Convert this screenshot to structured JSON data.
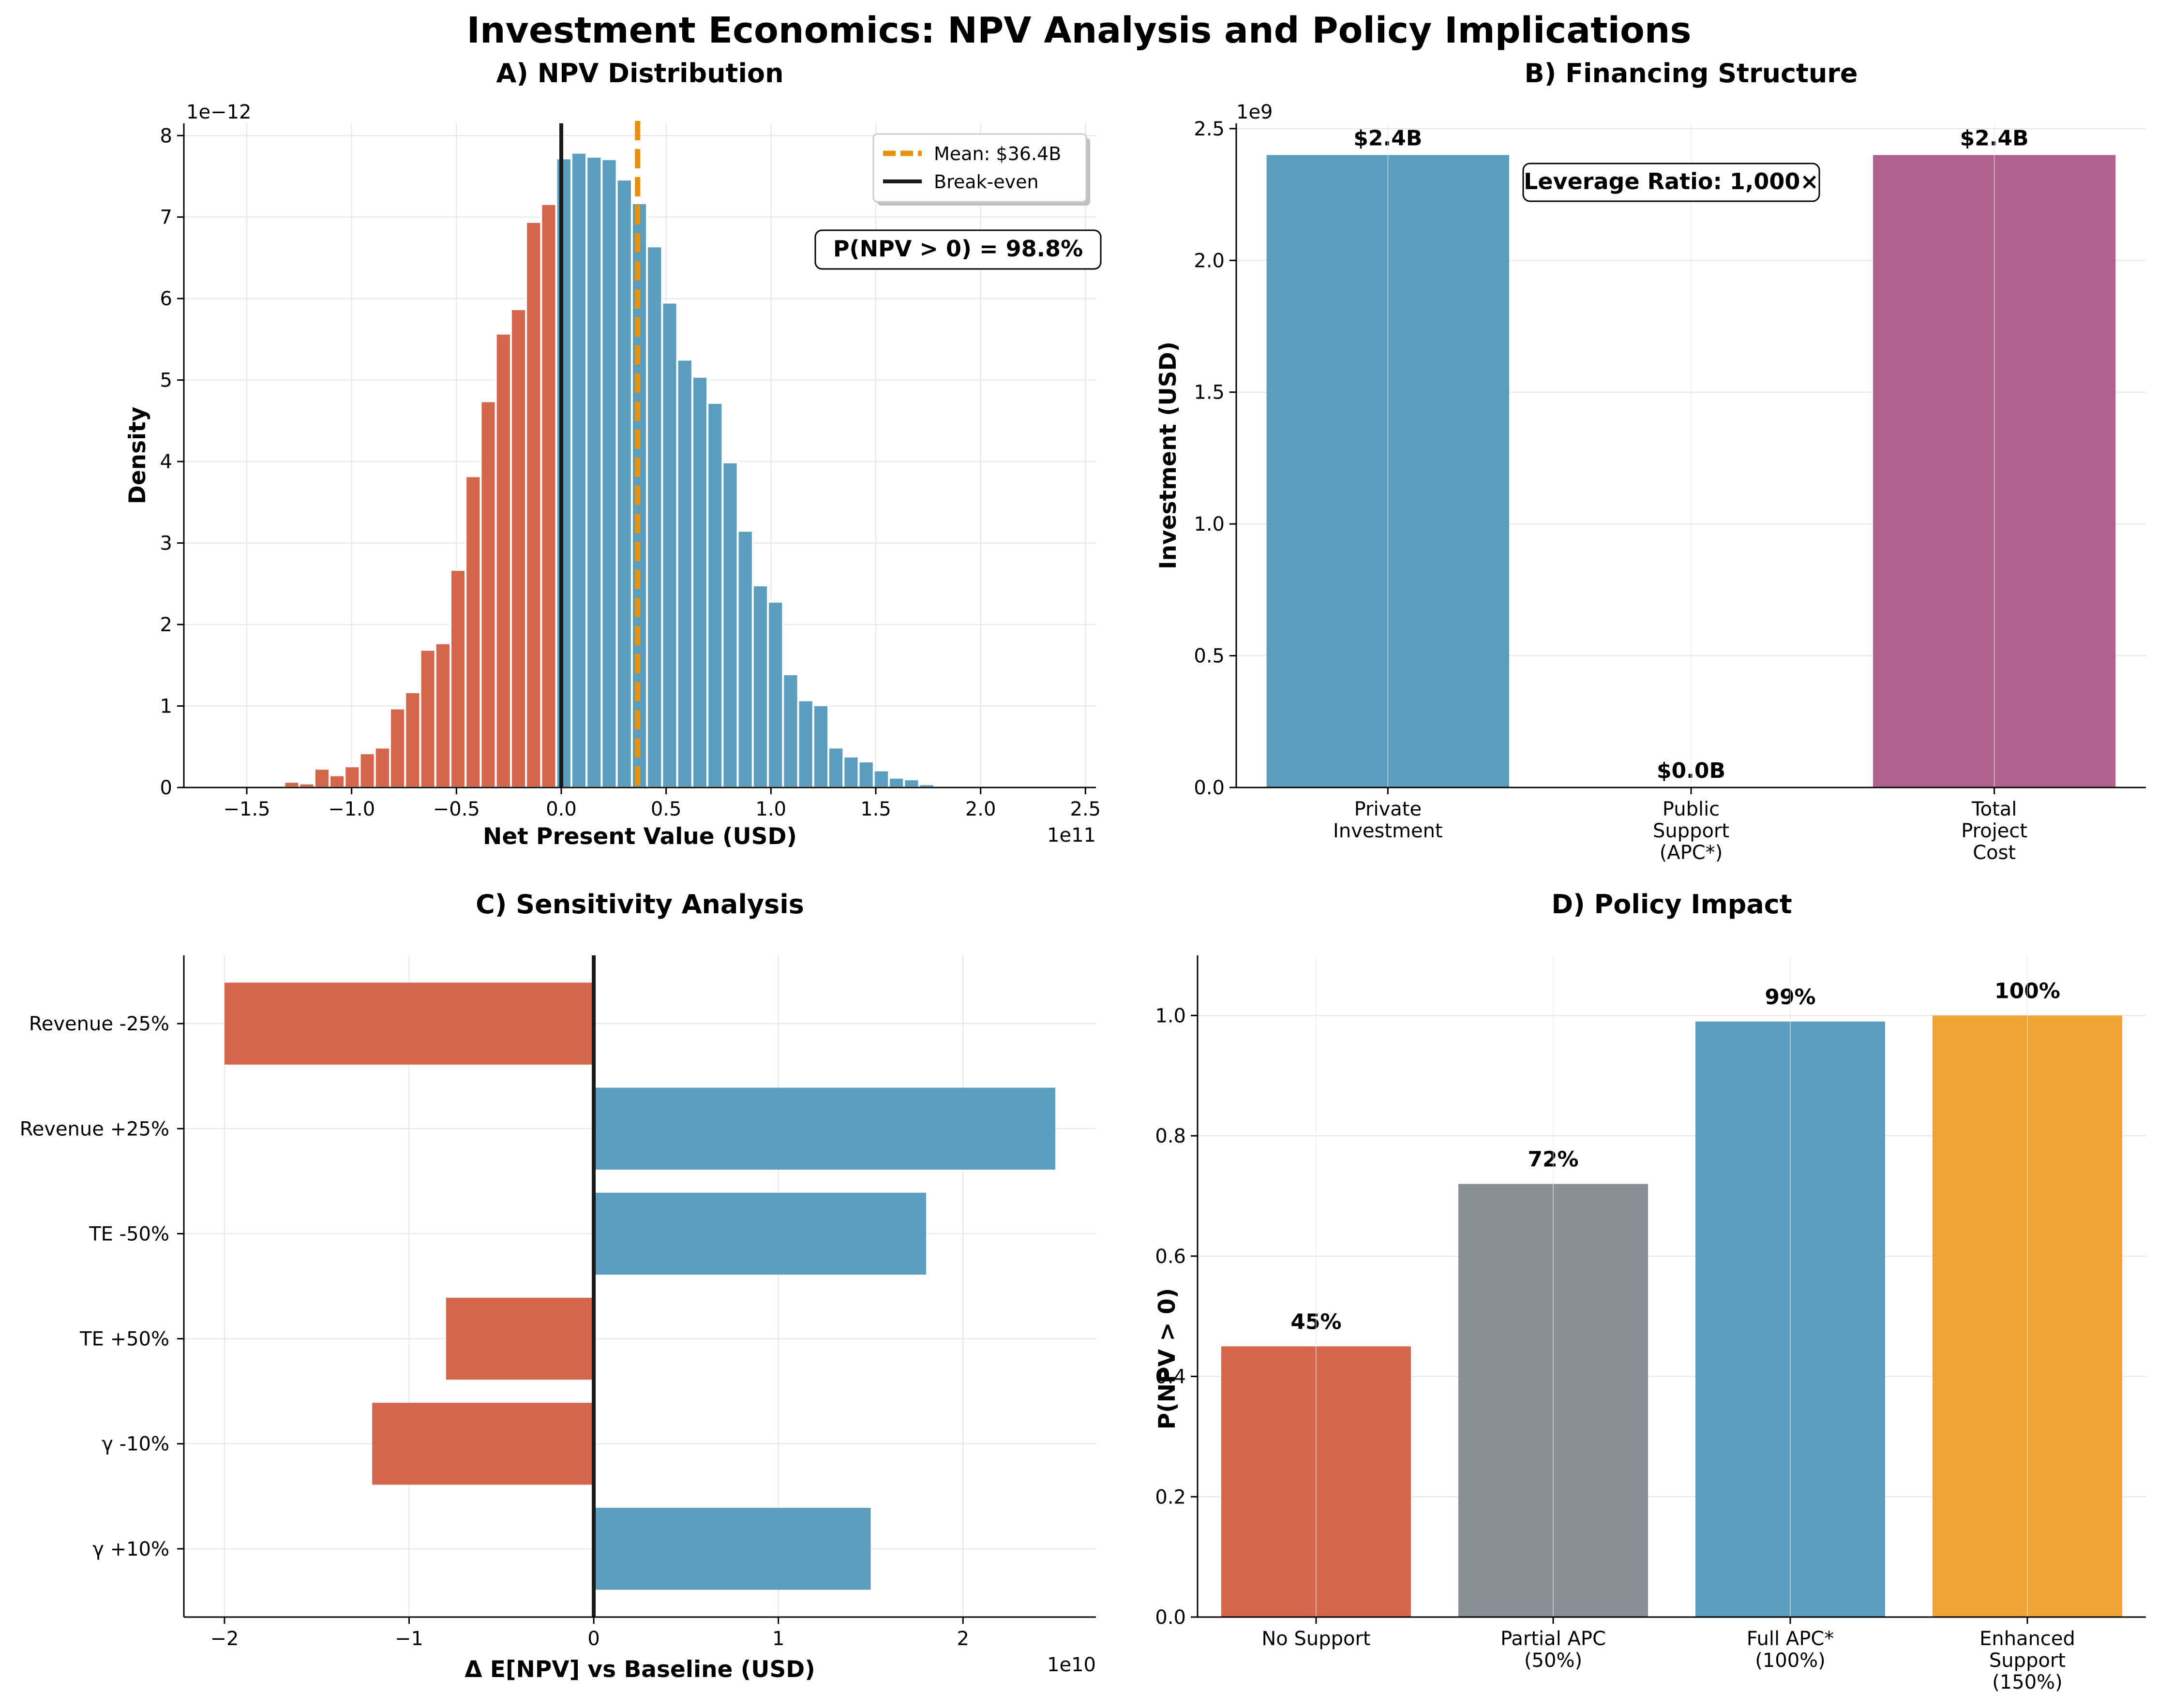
{
  "figure_title": "Investment Economics: NPV Analysis and Policy Implications",
  "colors": {
    "red": "#D5664D",
    "blue": "#5A9DBC",
    "purple": "#B0628C",
    "gray": "#898F96",
    "orange": "#F0A434",
    "mean_line": "#E8900F",
    "grid": "#E6E6E6"
  },
  "chart_data": [
    {
      "id": "A",
      "type": "bar",
      "subtype": "histogram",
      "title": "A) NPV Distribution",
      "xlabel": "Net Present Value (USD)",
      "ylabel": "Density",
      "x_multiplier": "1e11",
      "y_multiplier": "1e−12",
      "xlim": [
        -1.8,
        2.55
      ],
      "ylim": [
        0,
        8.15
      ],
      "xticks": [
        -1.5,
        -1.0,
        -0.5,
        0.0,
        0.5,
        1.0,
        1.5,
        2.0,
        2.5
      ],
      "xtick_labels": [
        "−1.5",
        "−1.0",
        "−0.5",
        "0.0",
        "0.5",
        "1.0",
        "1.5",
        "2.0",
        "2.5"
      ],
      "yticks": [
        0,
        1,
        2,
        3,
        4,
        5,
        6,
        7,
        8
      ],
      "ytick_labels": [
        "0",
        "1",
        "2",
        "3",
        "4",
        "5",
        "6",
        "7",
        "8"
      ],
      "bin_start": -1.61,
      "bin_width": 0.0721,
      "densities": [
        0,
        0,
        0,
        0,
        0.07,
        0.05,
        0.23,
        0.15,
        0.26,
        0.42,
        0.49,
        0.97,
        1.17,
        1.69,
        1.77,
        2.67,
        3.82,
        4.74,
        5.57,
        5.87,
        6.94,
        7.16,
        7.72,
        7.79,
        7.74,
        7.71,
        7.46,
        7.17,
        6.64,
        5.95,
        5.25,
        5.04,
        4.72,
        3.99,
        3.15,
        2.48,
        2.28,
        1.39,
        1.07,
        1.01,
        0.49,
        0.38,
        0.32,
        0.21,
        0.12,
        0.1,
        0.04,
        0.01,
        0.01,
        0.01
      ],
      "break_even_x": 0.0,
      "mean_x": 0.364,
      "legend": [
        "Mean: $36.4B",
        "Break-even"
      ],
      "legend_position": "top-right",
      "annotation": "P(NPV > 0) = 98.8%",
      "grid": true
    },
    {
      "id": "B",
      "type": "bar",
      "title": "B) Financing Structure",
      "ylabel": "Investment (USD)",
      "y_multiplier": "1e9",
      "categories": [
        [
          "Private",
          "Investment"
        ],
        [
          "Public",
          "Support",
          "(APC*)"
        ],
        [
          "Total",
          "Project",
          "Cost"
        ]
      ],
      "values": [
        2.4,
        0.0,
        2.4
      ],
      "value_labels": [
        "$2.4B",
        "$0.0B",
        "$2.4B"
      ],
      "ylim": [
        0,
        2.52
      ],
      "yticks": [
        0,
        0.5,
        1.0,
        1.5,
        2.0,
        2.5
      ],
      "ytick_labels": [
        "0.0",
        "0.5",
        "1.0",
        "1.5",
        "2.0",
        "2.5"
      ],
      "annotation": "Leverage Ratio: 1,000×",
      "grid": true
    },
    {
      "id": "C",
      "type": "bar",
      "orientation": "horizontal",
      "title": "C) Sensitivity Analysis",
      "xlabel": "Δ E[NPV] vs Baseline (USD)",
      "x_multiplier": "1e10",
      "categories": [
        "Revenue -25%",
        "Revenue +25%",
        "TE -50%",
        "TE +50%",
        "γ -10%",
        "γ +10%"
      ],
      "values": [
        -2.0,
        2.5,
        1.8,
        -0.8,
        -1.2,
        1.5
      ],
      "xlim": [
        -2.22,
        2.72
      ],
      "xticks": [
        -2,
        -1,
        0,
        1,
        2
      ],
      "xtick_labels": [
        "−2",
        "−1",
        "0",
        "1",
        "2"
      ],
      "grid": true
    },
    {
      "id": "D",
      "type": "bar",
      "title": "D) Policy Impact",
      "ylabel": "P(NPV > 0)",
      "categories": [
        [
          "No Support"
        ],
        [
          "Partial APC",
          "(50%)"
        ],
        [
          "Full APC*",
          "(100%)"
        ],
        [
          "Enhanced",
          "Support",
          "(150%)"
        ]
      ],
      "values": [
        0.45,
        0.72,
        0.99,
        1.0
      ],
      "value_labels": [
        "45%",
        "72%",
        "99%",
        "100%"
      ],
      "ylim": [
        0,
        1.1
      ],
      "yticks": [
        0.0,
        0.2,
        0.4,
        0.6,
        0.8,
        1.0
      ],
      "ytick_labels": [
        "0.0",
        "0.2",
        "0.4",
        "0.6",
        "0.8",
        "1.0"
      ],
      "grid": true
    }
  ]
}
